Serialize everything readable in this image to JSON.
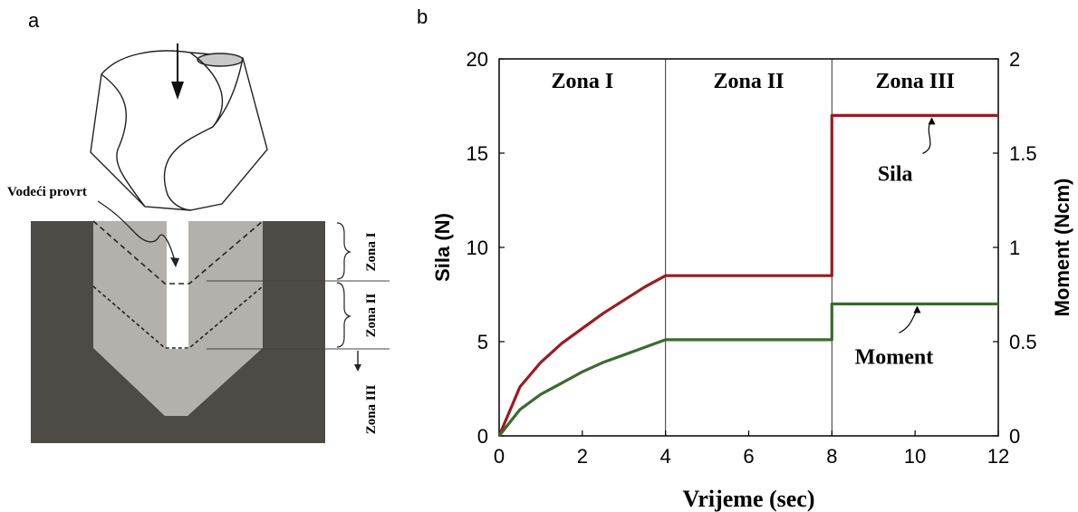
{
  "panel_a": {
    "letter": "a",
    "label_guide_hole": "Vodeći provrt",
    "zone_labels": [
      "Zona I",
      "Zona II",
      "Zona III"
    ]
  },
  "panel_b": {
    "letter": "b"
  },
  "chart_data": {
    "type": "line",
    "title": "",
    "xlabel": "Vrijeme (sec)",
    "ylabel": "Sila (N)",
    "y2label": "Moment (Ncm)",
    "xlim": [
      0,
      12
    ],
    "ylim": [
      0,
      20
    ],
    "y2lim": [
      0,
      2
    ],
    "x_ticks": [
      0,
      2,
      4,
      6,
      8,
      10,
      12
    ],
    "y_ticks": [
      0,
      5,
      10,
      15,
      20
    ],
    "y2_ticks": [
      "0",
      "0.5",
      "1",
      "1.5",
      "2"
    ],
    "grid": false,
    "zones": [
      {
        "label": "Zona I",
        "x_start": 0,
        "x_end": 4
      },
      {
        "label": "Zona II",
        "x_start": 4,
        "x_end": 8
      },
      {
        "label": "Zona III",
        "x_start": 8,
        "x_end": 12
      }
    ],
    "series": [
      {
        "name": "Sila",
        "axis": "left",
        "color": "#9b1b1f",
        "x": [
          0,
          0.5,
          1,
          1.5,
          2,
          2.5,
          3,
          3.5,
          4,
          8,
          8,
          12
        ],
        "y": [
          0,
          2.6,
          3.9,
          4.9,
          5.7,
          6.5,
          7.2,
          7.9,
          8.5,
          8.5,
          17,
          17
        ]
      },
      {
        "name": "Moment",
        "axis": "left",
        "color": "#3a6b2f",
        "x": [
          0,
          0.5,
          1,
          1.5,
          2,
          2.5,
          3,
          3.5,
          4,
          8,
          8,
          12
        ],
        "y": [
          0,
          1.4,
          2.2,
          2.8,
          3.4,
          3.9,
          4.3,
          4.7,
          5.1,
          5.1,
          7,
          7
        ]
      }
    ],
    "annotations": [
      {
        "text": "Sila",
        "points_to_series": "Sila"
      },
      {
        "text": "Moment",
        "points_to_series": "Moment"
      }
    ]
  }
}
